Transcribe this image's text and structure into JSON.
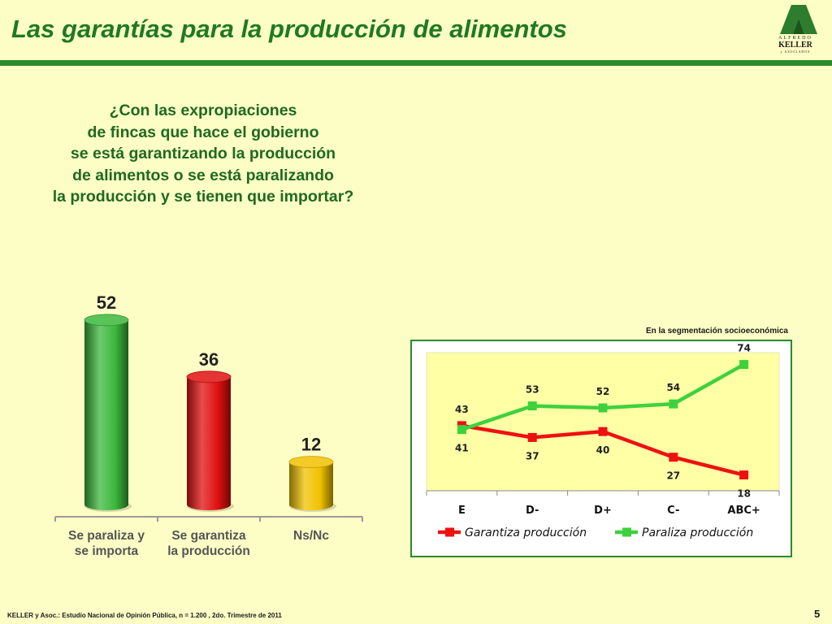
{
  "header": {
    "title": "Las garantías para la producción de alimentos",
    "logo": {
      "line1": "ALFREDO",
      "line2": "KELLER",
      "line3": "y ASOCIADOS"
    }
  },
  "question": "¿Con las expropiaciones\nde fincas que hace el gobierno\nse está garantizando la producción\nde alimentos o se está paralizando\nla producción y se tienen que importar?",
  "segment_note": "En la segmentación socioeconómica",
  "footer": {
    "source": "KELLER y Asoc.: Estudio Nacional de Opinión Pública, n = 1.200 , 2do. Trimestre de 2011",
    "page": "5"
  },
  "colors": {
    "green": "#2c8a2c",
    "title_green": "#1f7a1f",
    "bar_green": "#3cb83c",
    "bar_red": "#e01010",
    "bar_yellow": "#f2c200",
    "line_red": "#ee1111",
    "line_green": "#3ed13e",
    "plot_bg": "#ffffa6"
  },
  "chart_data": [
    {
      "type": "bar",
      "categories": [
        "Se paraliza y\nse importa",
        "Se garantiza\nla producción",
        "Ns/Nc"
      ],
      "values": [
        52,
        36,
        12
      ],
      "bar_colors": [
        "#3cb83c",
        "#e01010",
        "#f2c200"
      ],
      "title": "",
      "xlabel": "",
      "ylabel": "",
      "ylim": [
        0,
        60
      ]
    },
    {
      "type": "line",
      "categories": [
        "E",
        "D-",
        "D+",
        "C-",
        "ABC+"
      ],
      "series": [
        {
          "name": "Garantiza producción",
          "values": [
            43,
            37,
            40,
            27,
            18
          ],
          "color": "#ee1111"
        },
        {
          "name": "Paraliza producción",
          "values": [
            41,
            53,
            52,
            54,
            74
          ],
          "color": "#3ed13e"
        }
      ],
      "title": "",
      "xlabel": "",
      "ylabel": "",
      "grid": false,
      "legend": "bottom"
    }
  ]
}
